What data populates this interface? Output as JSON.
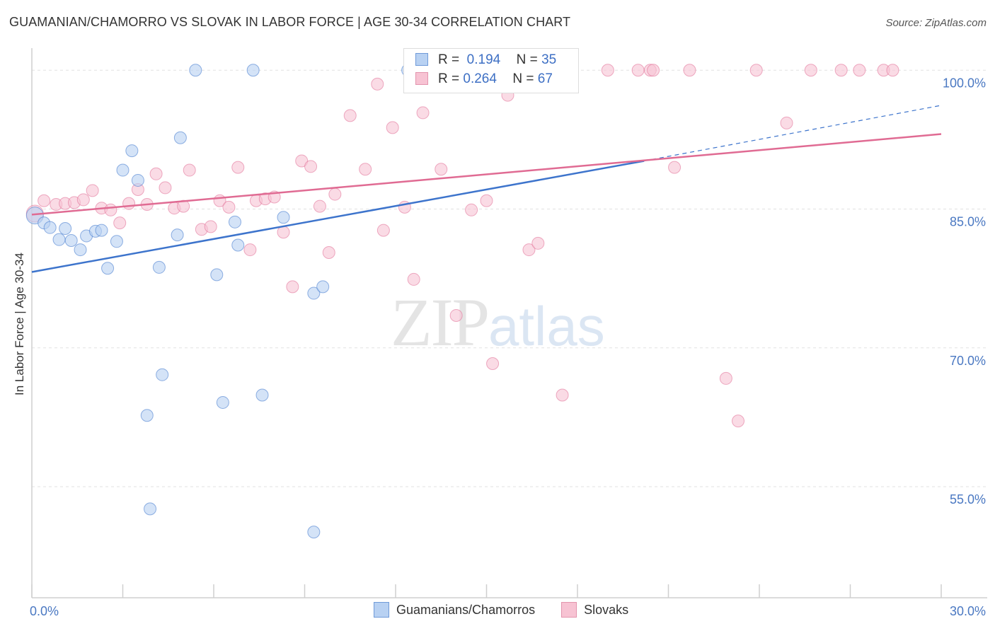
{
  "title": "GUAMANIAN/CHAMORRO VS SLOVAK IN LABOR FORCE | AGE 30-34 CORRELATION CHART",
  "source": "Source: ZipAtlas.com",
  "watermark": {
    "zip": "ZIP",
    "atlas": "atlas"
  },
  "colors": {
    "blue": "#3d74cc",
    "blue_fill": "#b8d1f2",
    "pink": "#e06b93",
    "pink_fill": "#f7c3d3",
    "tick": "#4a78c2"
  },
  "legend_top": {
    "rows": [
      {
        "r_label": "R =",
        "r_value": "0.194",
        "n_label": "N =",
        "n_value": "35"
      },
      {
        "r_label": "R =",
        "r_value": "0.264",
        "n_label": "N =",
        "n_value": "67"
      }
    ]
  },
  "legend_bottom": [
    "Guamanians/Chamorros",
    "Slovaks"
  ],
  "chart_data": {
    "type": "scatter",
    "title": "GUAMANIAN/CHAMORRO VS SLOVAK IN LABOR FORCE | AGE 30-34 CORRELATION CHART",
    "xlabel": "",
    "ylabel": "In Labor Force | Age 30-34",
    "xlim": [
      0,
      30
    ],
    "ylim": [
      43,
      103
    ],
    "x_ticks": [
      {
        "value": 0,
        "label": "0.0%"
      },
      {
        "value": 30,
        "label": "30.0%"
      }
    ],
    "y_ticks": [
      {
        "value": 100,
        "label": "100.0%"
      },
      {
        "value": 85,
        "label": "85.0%"
      },
      {
        "value": 70,
        "label": "70.0%"
      },
      {
        "value": 55,
        "label": "55.0%"
      }
    ],
    "grid": true,
    "legend_position": "bottom",
    "series": [
      {
        "name": "Guamanians/Chamorros",
        "color": "#3d74cc",
        "fill": "#b8d1f2",
        "r": 0.194,
        "n": 35,
        "trend": {
          "x0": 0,
          "y0": 78.2,
          "x1": 20.2,
          "y1": 90.2,
          "dash_to_x": 30,
          "dash_to_y": 96.2
        },
        "points": [
          [
            0.1,
            84.3
          ],
          [
            0.4,
            83.5
          ],
          [
            0.6,
            83.0
          ],
          [
            1.1,
            82.9
          ],
          [
            0.9,
            81.7
          ],
          [
            1.3,
            81.6
          ],
          [
            1.6,
            80.6
          ],
          [
            1.8,
            82.1
          ],
          [
            2.1,
            82.6
          ],
          [
            2.3,
            82.7
          ],
          [
            2.5,
            78.6
          ],
          [
            2.8,
            81.5
          ],
          [
            3.0,
            89.2
          ],
          [
            3.3,
            91.3
          ],
          [
            3.5,
            88.1
          ],
          [
            4.2,
            78.7
          ],
          [
            4.8,
            82.2
          ],
          [
            4.9,
            92.7
          ],
          [
            5.4,
            100.0
          ],
          [
            6.1,
            77.9
          ],
          [
            6.7,
            83.6
          ],
          [
            6.8,
            81.1
          ],
          [
            7.3,
            100.0
          ],
          [
            8.3,
            84.1
          ],
          [
            9.3,
            75.9
          ],
          [
            9.6,
            76.6
          ],
          [
            3.8,
            62.7
          ],
          [
            4.3,
            67.1
          ],
          [
            6.3,
            64.1
          ],
          [
            7.6,
            64.9
          ],
          [
            3.9,
            52.6
          ],
          [
            9.3,
            50.1
          ],
          [
            12.4,
            100.0
          ],
          [
            15.0,
            100.0
          ],
          [
            16.1,
            100.0
          ]
        ]
      },
      {
        "name": "Slovaks",
        "color": "#e06b93",
        "fill": "#f7c3d3",
        "r": 0.264,
        "n": 67,
        "trend": {
          "x0": 0,
          "y0": 84.4,
          "x1": 30,
          "y1": 93.1
        },
        "points": [
          [
            0.1,
            84.5
          ],
          [
            0.4,
            85.9
          ],
          [
            0.8,
            85.5
          ],
          [
            1.1,
            85.6
          ],
          [
            1.4,
            85.7
          ],
          [
            1.7,
            86.0
          ],
          [
            2.0,
            87.0
          ],
          [
            2.3,
            85.1
          ],
          [
            2.6,
            84.9
          ],
          [
            2.9,
            83.5
          ],
          [
            3.2,
            85.6
          ],
          [
            3.5,
            87.1
          ],
          [
            3.8,
            85.5
          ],
          [
            4.1,
            88.8
          ],
          [
            4.4,
            87.3
          ],
          [
            4.7,
            85.1
          ],
          [
            5.0,
            85.3
          ],
          [
            5.2,
            89.2
          ],
          [
            5.6,
            82.8
          ],
          [
            5.9,
            83.1
          ],
          [
            6.2,
            85.9
          ],
          [
            6.5,
            85.2
          ],
          [
            6.8,
            89.5
          ],
          [
            7.2,
            80.6
          ],
          [
            7.4,
            85.9
          ],
          [
            7.7,
            86.1
          ],
          [
            8.0,
            86.3
          ],
          [
            8.3,
            82.5
          ],
          [
            8.6,
            76.6
          ],
          [
            8.9,
            90.2
          ],
          [
            9.2,
            89.6
          ],
          [
            9.5,
            85.3
          ],
          [
            9.8,
            80.3
          ],
          [
            10.0,
            86.6
          ],
          [
            10.5,
            95.1
          ],
          [
            11.0,
            89.3
          ],
          [
            11.4,
            98.5
          ],
          [
            11.6,
            82.7
          ],
          [
            11.9,
            93.8
          ],
          [
            12.3,
            85.2
          ],
          [
            12.6,
            77.4
          ],
          [
            12.9,
            95.4
          ],
          [
            13.5,
            89.3
          ],
          [
            14.0,
            73.5
          ],
          [
            14.5,
            84.9
          ],
          [
            15.0,
            85.9
          ],
          [
            15.2,
            68.3
          ],
          [
            15.7,
            97.3
          ],
          [
            16.4,
            80.6
          ],
          [
            16.7,
            81.3
          ],
          [
            17.5,
            64.9
          ],
          [
            19.0,
            100.0
          ],
          [
            20.0,
            100.0
          ],
          [
            20.4,
            100.0
          ],
          [
            21.2,
            89.5
          ],
          [
            21.7,
            100.0
          ],
          [
            22.9,
            66.7
          ],
          [
            23.3,
            62.1
          ],
          [
            23.9,
            100.0
          ],
          [
            24.9,
            94.3
          ],
          [
            25.7,
            100.0
          ],
          [
            26.7,
            100.0
          ],
          [
            27.3,
            100.0
          ],
          [
            28.1,
            100.0
          ],
          [
            28.4,
            100.0
          ],
          [
            20.5,
            100.0
          ],
          [
            15.0,
            100.0
          ]
        ]
      }
    ]
  }
}
